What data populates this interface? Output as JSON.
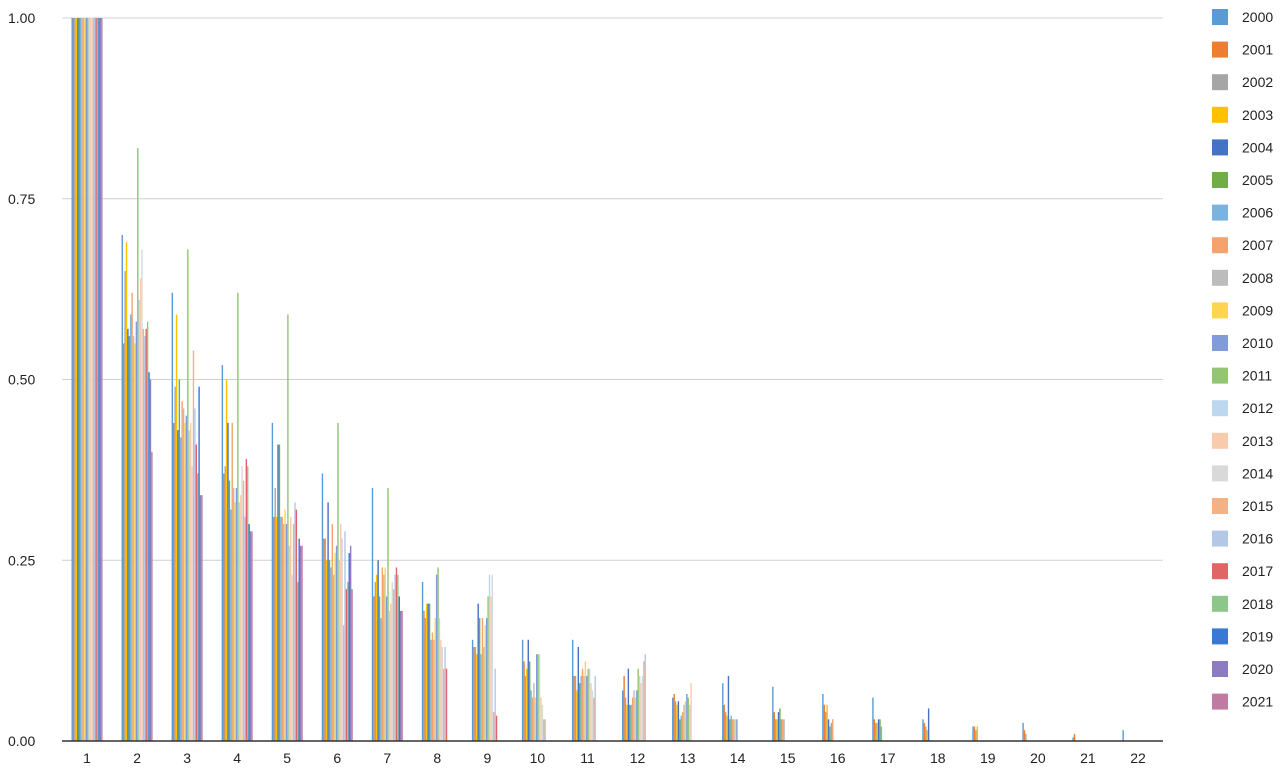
{
  "chart_data": {
    "type": "bar",
    "ylim": [
      0,
      1
    ],
    "yticks": [
      "0.00",
      "0.25",
      "0.50",
      "0.75",
      "1.00"
    ],
    "ytick_values": [
      0,
      0.25,
      0.5,
      0.75,
      1.0
    ],
    "grid": true,
    "legend_position": "right",
    "categories": [
      "1",
      "2",
      "3",
      "4",
      "5",
      "6",
      "7",
      "8",
      "9",
      "10",
      "11",
      "12",
      "13",
      "14",
      "15",
      "16",
      "17",
      "18",
      "19",
      "20",
      "21",
      "22"
    ],
    "series": [
      {
        "name": "2000",
        "color": "#5b9bd5",
        "values": [
          1,
          0.7,
          0.62,
          0.52,
          0.44,
          0.37,
          0.35,
          0.22,
          0.14,
          0.14,
          0.14,
          0.07,
          0.06,
          0.08,
          0.075,
          0.065,
          0.06,
          0.03,
          0.02,
          0.025,
          0.005,
          0.015
        ]
      },
      {
        "name": "2001",
        "color": "#ed7d31",
        "values": [
          1,
          0.55,
          0.44,
          0.37,
          0.31,
          0.28,
          0.2,
          0.18,
          0.13,
          0.11,
          0.09,
          0.09,
          0.065,
          0.05,
          0.04,
          0.05,
          0.03,
          0.025,
          0.02,
          0.015,
          0.01,
          null
        ]
      },
      {
        "name": "2002",
        "color": "#a5a5a5",
        "values": [
          1,
          0.65,
          0.49,
          0.38,
          0.35,
          0.28,
          0.22,
          0.17,
          0.13,
          0.09,
          0.09,
          0.06,
          0.055,
          0.04,
          0.03,
          0.04,
          0.025,
          0.02,
          0.015,
          0.01,
          null,
          null
        ]
      },
      {
        "name": "2003",
        "color": "#ffc000",
        "values": [
          1,
          0.69,
          0.59,
          0.5,
          0.31,
          0.25,
          0.23,
          0.19,
          0.12,
          0.1,
          0.07,
          0.05,
          0.05,
          0.035,
          0.03,
          0.05,
          0.025,
          0.015,
          0.02,
          null,
          null,
          null
        ]
      },
      {
        "name": "2004",
        "color": "#4472c4",
        "values": [
          1,
          0.57,
          0.43,
          0.44,
          0.41,
          0.33,
          0.25,
          0.19,
          0.19,
          0.14,
          0.13,
          0.1,
          0.055,
          0.09,
          0.04,
          0.03,
          0.03,
          0.045,
          null,
          null,
          null,
          null
        ]
      },
      {
        "name": "2005",
        "color": "#70ad47",
        "values": [
          1,
          0.56,
          0.5,
          0.36,
          0.41,
          0.25,
          0.2,
          0.19,
          0.17,
          0.11,
          0.08,
          0.05,
          0.03,
          0.03,
          0.045,
          0.02,
          0.03,
          null,
          null,
          null,
          null,
          null
        ]
      },
      {
        "name": "2006",
        "color": "#7ab3e0",
        "values": [
          1,
          0.59,
          0.42,
          0.32,
          0.31,
          0.24,
          0.17,
          0.14,
          0.12,
          0.07,
          0.09,
          0.05,
          0.035,
          0.035,
          0.03,
          0.025,
          0.02,
          null,
          null,
          null,
          null,
          null
        ]
      },
      {
        "name": "2007",
        "color": "#f4a26e",
        "values": [
          1,
          0.62,
          0.47,
          0.44,
          0.31,
          0.3,
          0.24,
          0.15,
          0.17,
          0.06,
          0.1,
          0.06,
          0.04,
          0.03,
          0.03,
          0.03,
          null,
          null,
          null,
          null,
          null,
          null
        ]
      },
      {
        "name": "2008",
        "color": "#bcbcbc",
        "values": [
          1,
          0.56,
          0.46,
          0.35,
          0.3,
          0.23,
          0.23,
          0.14,
          0.13,
          0.08,
          0.09,
          0.07,
          0.05,
          0.03,
          0.03,
          null,
          null,
          null,
          null,
          null,
          null,
          null
        ]
      },
      {
        "name": "2009",
        "color": "#ffd54f",
        "values": [
          1,
          0.55,
          0.44,
          0.33,
          0.32,
          0.26,
          0.24,
          0.17,
          0.16,
          0.06,
          0.11,
          0.06,
          0.055,
          0.03,
          null,
          null,
          null,
          null,
          null,
          null,
          null,
          null
        ]
      },
      {
        "name": "2010",
        "color": "#7f9cd8",
        "values": [
          1,
          0.58,
          0.45,
          0.35,
          0.3,
          0.27,
          0.2,
          0.23,
          0.17,
          0.12,
          0.09,
          0.07,
          0.065,
          0.03,
          null,
          null,
          null,
          null,
          null,
          null,
          null,
          null
        ]
      },
      {
        "name": "2011",
        "color": "#93c572",
        "values": [
          1,
          0.82,
          0.68,
          0.62,
          0.59,
          0.44,
          0.35,
          0.24,
          0.2,
          0.12,
          0.1,
          0.1,
          0.06,
          null,
          null,
          null,
          null,
          null,
          null,
          null,
          null,
          null
        ]
      },
      {
        "name": "2012",
        "color": "#bdd7ee",
        "values": [
          1,
          0.61,
          0.43,
          0.33,
          0.27,
          0.25,
          0.18,
          0.17,
          0.23,
          0.12,
          0.1,
          0.09,
          0.05,
          null,
          null,
          null,
          null,
          null,
          null,
          null,
          null,
          null
        ]
      },
      {
        "name": "2013",
        "color": "#f8cbad",
        "values": [
          1,
          0.64,
          0.44,
          0.34,
          0.31,
          0.3,
          0.19,
          0.14,
          0.2,
          0.06,
          0.08,
          0.08,
          0.08,
          null,
          null,
          null,
          null,
          null,
          null,
          null,
          null,
          null
        ]
      },
      {
        "name": "2014",
        "color": "#d9d9d9",
        "values": [
          1,
          0.68,
          0.38,
          0.38,
          0.23,
          0.28,
          0.22,
          0.13,
          0.23,
          0.05,
          0.07,
          0.09,
          null,
          null,
          null,
          null,
          null,
          null,
          null,
          null,
          null,
          null
        ]
      },
      {
        "name": "2015",
        "color": "#f4b183",
        "values": [
          1,
          0.57,
          0.54,
          0.36,
          0.3,
          0.16,
          0.21,
          0.1,
          0.04,
          0.03,
          0.06,
          0.11,
          null,
          null,
          null,
          null,
          null,
          null,
          null,
          null,
          null,
          null
        ]
      },
      {
        "name": "2016",
        "color": "#b4c7e7",
        "values": [
          1,
          0.56,
          0.46,
          0.31,
          0.33,
          0.29,
          0.23,
          0.13,
          0.1,
          0.03,
          0.09,
          0.12,
          null,
          null,
          null,
          null,
          null,
          null,
          null,
          null,
          null,
          null
        ]
      },
      {
        "name": "2017",
        "color": "#e06666",
        "values": [
          1,
          0.57,
          0.41,
          0.39,
          0.32,
          0.21,
          0.24,
          0.1,
          0.035,
          null,
          null,
          null,
          null,
          null,
          null,
          null,
          null,
          null,
          null,
          null,
          null,
          null
        ]
      },
      {
        "name": "2018",
        "color": "#8cc68a",
        "values": [
          1,
          0.58,
          0.37,
          0.38,
          0.22,
          0.22,
          0.23,
          null,
          null,
          null,
          null,
          null,
          null,
          null,
          null,
          null,
          null,
          null,
          null,
          null,
          null,
          null
        ]
      },
      {
        "name": "2019",
        "color": "#3a78d6",
        "values": [
          1,
          0.51,
          0.49,
          0.3,
          0.28,
          0.26,
          0.2,
          null,
          null,
          null,
          null,
          null,
          null,
          null,
          null,
          null,
          null,
          null,
          null,
          null,
          null,
          null
        ]
      },
      {
        "name": "2020",
        "color": "#8e7cc3",
        "values": [
          1,
          0.5,
          0.34,
          0.29,
          0.27,
          0.27,
          0.18,
          null,
          null,
          null,
          null,
          null,
          null,
          null,
          null,
          null,
          null,
          null,
          null,
          null,
          null,
          null
        ]
      },
      {
        "name": "2021",
        "color": "#c27ba0",
        "values": [
          1,
          0.4,
          0.34,
          0.29,
          0.27,
          0.21,
          0.18,
          null,
          null,
          null,
          null,
          null,
          null,
          null,
          null,
          null,
          null,
          null,
          null,
          null,
          null,
          null
        ]
      }
    ]
  }
}
